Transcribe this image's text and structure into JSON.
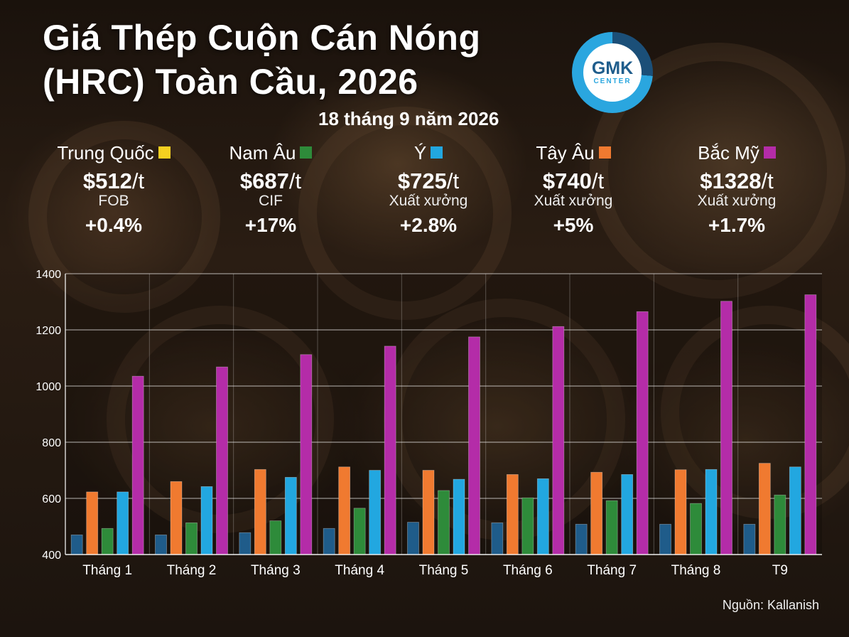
{
  "title_line1": "Giá Thép Cuộn Cán Nóng",
  "title_line2": "(HRC) Toàn Cầu, 2026",
  "subtitle": "18 tháng 9 năm 2026",
  "logo": {
    "main": "GMK",
    "sub": "CENTER",
    "colors": {
      "dark": "#1b4f78",
      "light": "#2aa6df"
    }
  },
  "cards": [
    {
      "region": "Trung Quốc",
      "color": "#f5d020",
      "price": "$512",
      "unit": "/t",
      "basis": "FOB",
      "change": "+0.4%"
    },
    {
      "region": "Nam Âu",
      "color": "#2e8b3a",
      "price": "$687",
      "unit": "/t",
      "basis": "CIF",
      "change": "+17%"
    },
    {
      "region": "Ý",
      "color": "#22a7e0",
      "price": "$725",
      "unit": "/t",
      "basis": "Xuất xưởng",
      "change": "+2.8%"
    },
    {
      "region": "Tây Âu",
      "color": "#f07a30",
      "price": "$740",
      "unit": "/t",
      "basis": "Xuất xưởng",
      "change": "+5%"
    },
    {
      "region": "Bắc Mỹ",
      "color": "#b42ca8",
      "price": "$1328",
      "unit": "/t",
      "basis": "Xuất xưởng",
      "change": "+1.7%"
    }
  ],
  "source": "Nguồn: Kallanish",
  "chart_data": {
    "type": "bar",
    "categories": [
      "Tháng 1",
      "Tháng 2",
      "Tháng 3",
      "Tháng 4",
      "Tháng 5",
      "Tháng 6",
      "Tháng 7",
      "Tháng 8",
      "T9"
    ],
    "ylim": [
      400,
      1400
    ],
    "yticks": [
      400,
      600,
      800,
      1000,
      1200,
      1400
    ],
    "grid": true,
    "series": [
      {
        "color": "#1f5c8a",
        "values": [
          470,
          470,
          478,
          493,
          515,
          513,
          508,
          508,
          508
        ]
      },
      {
        "color": "#f07a30",
        "values": [
          623,
          660,
          703,
          712,
          700,
          685,
          693,
          702,
          725
        ]
      },
      {
        "color": "#2e8b3a",
        "values": [
          493,
          513,
          520,
          565,
          628,
          602,
          592,
          582,
          612
        ]
      },
      {
        "color": "#22a7e0",
        "values": [
          623,
          642,
          675,
          700,
          668,
          670,
          685,
          703,
          712
        ]
      },
      {
        "color": "#b42ca8",
        "values": [
          1035,
          1068,
          1112,
          1142,
          1175,
          1212,
          1265,
          1302,
          1325
        ]
      }
    ]
  }
}
